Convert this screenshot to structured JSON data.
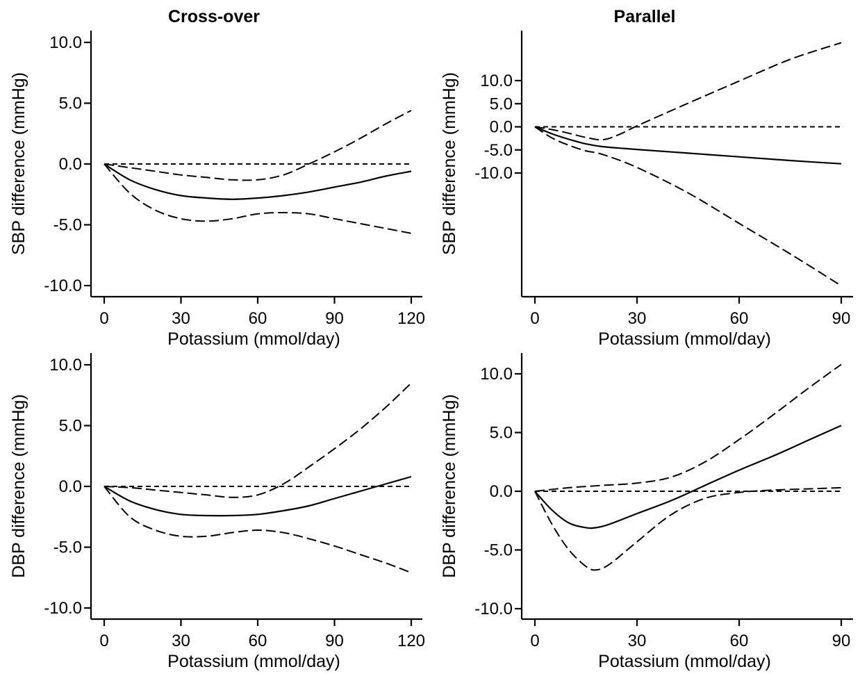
{
  "column_titles": [
    "Cross-over",
    "Parallel"
  ],
  "chart_data": [
    {
      "type": "line",
      "title": "Cross-over",
      "xlabel": "Potassium (mmol/day)",
      "ylabel": "SBP difference (mmHg)",
      "xlim": [
        0,
        120
      ],
      "ylim": [
        -11,
        11
      ],
      "xticks": [
        0,
        30,
        60,
        90,
        120
      ],
      "xtick_labels": [
        "0",
        "30",
        "60",
        "90",
        "120"
      ],
      "yticks": [
        10,
        5,
        0,
        -5,
        -10
      ],
      "ytick_labels": [
        "10.0",
        "5.0",
        "0.0",
        "-5.0",
        "-10.0"
      ],
      "reference_line": 0,
      "series": [
        {
          "role": "estimate",
          "style": "solid",
          "x": [
            0,
            10,
            20,
            30,
            40,
            50,
            60,
            70,
            80,
            90,
            100,
            110,
            120
          ],
          "y": [
            0,
            -1.3,
            -2.1,
            -2.6,
            -2.8,
            -2.9,
            -2.8,
            -2.6,
            -2.3,
            -1.9,
            -1.5,
            -1.0,
            -0.6
          ]
        },
        {
          "role": "upper-ci",
          "style": "dashed",
          "x": [
            0,
            10,
            20,
            30,
            40,
            50,
            60,
            70,
            80,
            90,
            100,
            110,
            120
          ],
          "y": [
            0,
            -0.3,
            -0.6,
            -0.9,
            -1.1,
            -1.3,
            -1.3,
            -0.9,
            0.0,
            1.0,
            2.1,
            3.3,
            4.4
          ]
        },
        {
          "role": "lower-ci",
          "style": "dashed",
          "x": [
            0,
            10,
            20,
            30,
            40,
            50,
            60,
            70,
            80,
            90,
            100,
            110,
            120
          ],
          "y": [
            0,
            -2.4,
            -3.8,
            -4.5,
            -4.7,
            -4.5,
            -4.1,
            -4.0,
            -4.1,
            -4.5,
            -4.9,
            -5.3,
            -5.7
          ]
        }
      ]
    },
    {
      "type": "line",
      "title": "Parallel",
      "xlabel": "Potassium (mmol/day)",
      "ylabel": "SBP difference (mmHg)",
      "xlim": [
        0,
        90
      ],
      "ylim": [
        -37,
        21
      ],
      "xticks": [
        0,
        30,
        60,
        90
      ],
      "xtick_labels": [
        "0",
        "30",
        "60",
        "90"
      ],
      "yticks": [
        10,
        5,
        0,
        -5,
        -10
      ],
      "ytick_labels": [
        "10.0",
        "5.0",
        "0.0",
        "-5.0",
        "-10.0"
      ],
      "reference_line": 0,
      "series": [
        {
          "role": "estimate",
          "style": "solid",
          "x": [
            0,
            5,
            10,
            15,
            20,
            30,
            45,
            60,
            75,
            90
          ],
          "y": [
            0,
            -1.5,
            -2.7,
            -3.7,
            -4.3,
            -4.9,
            -5.7,
            -6.5,
            -7.3,
            -8.0
          ]
        },
        {
          "role": "upper-ci",
          "style": "dashed",
          "x": [
            0,
            5,
            10,
            15,
            20,
            25,
            30,
            45,
            60,
            75,
            90
          ],
          "y": [
            0,
            -0.6,
            -1.4,
            -2.3,
            -2.8,
            -1.6,
            0.2,
            5.1,
            9.9,
            14.6,
            18.2
          ]
        },
        {
          "role": "lower-ci",
          "style": "dashed",
          "x": [
            0,
            5,
            10,
            15,
            20,
            30,
            45,
            60,
            75,
            90
          ],
          "y": [
            0,
            -2.4,
            -4.0,
            -5.2,
            -6.0,
            -8.8,
            -14.3,
            -20.9,
            -27.5,
            -34.4
          ]
        }
      ]
    },
    {
      "type": "line",
      "title": "",
      "xlabel": "Potassium (mmol/day)",
      "ylabel": "DBP difference (mmHg)",
      "xlim": [
        0,
        120
      ],
      "ylim": [
        -11,
        11
      ],
      "xticks": [
        0,
        30,
        60,
        90,
        120
      ],
      "xtick_labels": [
        "0",
        "30",
        "60",
        "90",
        "120"
      ],
      "yticks": [
        10,
        5,
        0,
        -5,
        -10
      ],
      "ytick_labels": [
        "10.0",
        "5.0",
        "0.0",
        "-5.0",
        "-10.0"
      ],
      "reference_line": 0,
      "series": [
        {
          "role": "estimate",
          "style": "solid",
          "x": [
            0,
            10,
            20,
            30,
            40,
            50,
            60,
            70,
            80,
            90,
            100,
            110,
            120
          ],
          "y": [
            0,
            -1.2,
            -1.9,
            -2.3,
            -2.4,
            -2.4,
            -2.3,
            -2.0,
            -1.6,
            -1.0,
            -0.4,
            0.2,
            0.8
          ]
        },
        {
          "role": "upper-ci",
          "style": "dashed",
          "x": [
            0,
            10,
            20,
            30,
            40,
            50,
            60,
            70,
            80,
            90,
            100,
            110,
            120
          ],
          "y": [
            0,
            -0.1,
            -0.3,
            -0.5,
            -0.7,
            -0.9,
            -0.7,
            0.2,
            1.6,
            3.1,
            4.7,
            6.5,
            8.5
          ]
        },
        {
          "role": "lower-ci",
          "style": "dashed",
          "x": [
            0,
            10,
            20,
            30,
            40,
            50,
            60,
            70,
            80,
            90,
            100,
            110,
            120
          ],
          "y": [
            0,
            -2.5,
            -3.6,
            -4.1,
            -4.1,
            -3.8,
            -3.6,
            -3.8,
            -4.3,
            -4.9,
            -5.6,
            -6.3,
            -7.1
          ]
        }
      ]
    },
    {
      "type": "line",
      "title": "",
      "xlabel": "Potassium (mmol/day)",
      "ylabel": "DBP difference (mmHg)",
      "xlim": [
        0,
        90
      ],
      "ylim": [
        -11,
        11
      ],
      "xticks": [
        0,
        30,
        60,
        90
      ],
      "xtick_labels": [
        "0",
        "30",
        "60",
        "90"
      ],
      "yticks": [
        10,
        5,
        0,
        -5,
        -10
      ],
      "ytick_labels": [
        "10.0",
        "5.0",
        "0.0",
        "-5.0",
        "-10.0"
      ],
      "reference_line": 0,
      "series": [
        {
          "role": "estimate",
          "style": "solid",
          "x": [
            0,
            5,
            10,
            15,
            18,
            22,
            30,
            40,
            50,
            60,
            70,
            80,
            90
          ],
          "y": [
            0,
            -1.6,
            -2.7,
            -3.1,
            -3.1,
            -2.8,
            -1.9,
            -0.8,
            0.5,
            1.8,
            3.0,
            4.3,
            5.6
          ]
        },
        {
          "role": "upper-ci",
          "style": "dashed",
          "x": [
            0,
            10,
            20,
            30,
            40,
            50,
            60,
            70,
            80,
            90
          ],
          "y": [
            0,
            0.3,
            0.5,
            0.7,
            1.2,
            2.5,
            4.4,
            6.5,
            8.7,
            10.8
          ]
        },
        {
          "role": "lower-ci",
          "style": "dashed",
          "x": [
            0,
            5,
            10,
            15,
            18,
            22,
            30,
            40,
            50,
            60,
            70,
            80,
            90
          ],
          "y": [
            0,
            -2.8,
            -5.0,
            -6.4,
            -6.7,
            -6.2,
            -4.3,
            -2.0,
            -0.6,
            -0.1,
            0.1,
            0.2,
            0.3
          ]
        }
      ]
    }
  ]
}
